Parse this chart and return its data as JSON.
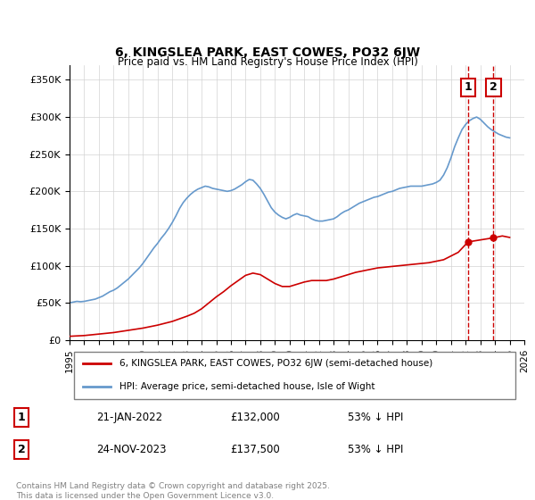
{
  "title_line1": "6, KINGSLEA PARK, EAST COWES, PO32 6JW",
  "title_line2": "Price paid vs. HM Land Registry's House Price Index (HPI)",
  "ylabel": "",
  "xlim": [
    1995,
    2026
  ],
  "ylim": [
    0,
    370000
  ],
  "yticks": [
    0,
    50000,
    100000,
    150000,
    200000,
    250000,
    300000,
    350000
  ],
  "ytick_labels": [
    "£0",
    "£50K",
    "£100K",
    "£150K",
    "£200K",
    "£250K",
    "£300K",
    "£350K"
  ],
  "xticks": [
    1995,
    1996,
    1997,
    1998,
    1999,
    2000,
    2001,
    2002,
    2003,
    2004,
    2005,
    2006,
    2007,
    2008,
    2009,
    2010,
    2011,
    2012,
    2013,
    2014,
    2015,
    2016,
    2017,
    2018,
    2019,
    2020,
    2021,
    2022,
    2023,
    2024,
    2025,
    2026
  ],
  "red_line_color": "#cc0000",
  "blue_line_color": "#6699cc",
  "marker_vline_color": "#cc0000",
  "annotation_box_color": "#cc0000",
  "legend_label_red": "6, KINGSLEA PARK, EAST COWES, PO32 6JW (semi-detached house)",
  "legend_label_blue": "HPI: Average price, semi-detached house, Isle of Wight",
  "annotation1_label": "1",
  "annotation1_date": "21-JAN-2022",
  "annotation1_price": "£132,000",
  "annotation1_hpi": "53% ↓ HPI",
  "annotation2_label": "2",
  "annotation2_date": "24-NOV-2023",
  "annotation2_price": "£137,500",
  "annotation2_hpi": "53% ↓ HPI",
  "footnote": "Contains HM Land Registry data © Crown copyright and database right 2025.\nThis data is licensed under the Open Government Licence v3.0.",
  "hpi_x": [
    1995.0,
    1995.25,
    1995.5,
    1995.75,
    1996.0,
    1996.25,
    1996.5,
    1996.75,
    1997.0,
    1997.25,
    1997.5,
    1997.75,
    1998.0,
    1998.25,
    1998.5,
    1998.75,
    1999.0,
    1999.25,
    1999.5,
    1999.75,
    2000.0,
    2000.25,
    2000.5,
    2000.75,
    2001.0,
    2001.25,
    2001.5,
    2001.75,
    2002.0,
    2002.25,
    2002.5,
    2002.75,
    2003.0,
    2003.25,
    2003.5,
    2003.75,
    2004.0,
    2004.25,
    2004.5,
    2004.75,
    2005.0,
    2005.25,
    2005.5,
    2005.75,
    2006.0,
    2006.25,
    2006.5,
    2006.75,
    2007.0,
    2007.25,
    2007.5,
    2007.75,
    2008.0,
    2008.25,
    2008.5,
    2008.75,
    2009.0,
    2009.25,
    2009.5,
    2009.75,
    2010.0,
    2010.25,
    2010.5,
    2010.75,
    2011.0,
    2011.25,
    2011.5,
    2011.75,
    2012.0,
    2012.25,
    2012.5,
    2012.75,
    2013.0,
    2013.25,
    2013.5,
    2013.75,
    2014.0,
    2014.25,
    2014.5,
    2014.75,
    2015.0,
    2015.25,
    2015.5,
    2015.75,
    2016.0,
    2016.25,
    2016.5,
    2016.75,
    2017.0,
    2017.25,
    2017.5,
    2017.75,
    2018.0,
    2018.25,
    2018.5,
    2018.75,
    2019.0,
    2019.25,
    2019.5,
    2019.75,
    2020.0,
    2020.25,
    2020.5,
    2020.75,
    2021.0,
    2021.25,
    2021.5,
    2021.75,
    2022.0,
    2022.25,
    2022.5,
    2022.75,
    2023.0,
    2023.25,
    2023.5,
    2023.75,
    2024.0,
    2024.25,
    2024.5,
    2024.75,
    2025.0
  ],
  "hpi_y": [
    50000,
    51000,
    52000,
    51500,
    52000,
    53000,
    54000,
    55000,
    57000,
    59000,
    62000,
    65000,
    67000,
    70000,
    74000,
    78000,
    82000,
    87000,
    92000,
    97000,
    103000,
    110000,
    117000,
    124000,
    130000,
    137000,
    143000,
    150000,
    158000,
    167000,
    177000,
    185000,
    191000,
    196000,
    200000,
    203000,
    205000,
    207000,
    206000,
    204000,
    203000,
    202000,
    201000,
    200000,
    201000,
    203000,
    206000,
    209000,
    213000,
    216000,
    215000,
    210000,
    204000,
    196000,
    187000,
    178000,
    172000,
    168000,
    165000,
    163000,
    165000,
    168000,
    170000,
    168000,
    167000,
    166000,
    163000,
    161000,
    160000,
    160000,
    161000,
    162000,
    163000,
    166000,
    170000,
    173000,
    175000,
    178000,
    181000,
    184000,
    186000,
    188000,
    190000,
    192000,
    193000,
    195000,
    197000,
    199000,
    200000,
    202000,
    204000,
    205000,
    206000,
    207000,
    207000,
    207000,
    207000,
    208000,
    209000,
    210000,
    212000,
    215000,
    222000,
    232000,
    245000,
    260000,
    272000,
    283000,
    290000,
    295000,
    298000,
    300000,
    297000,
    292000,
    287000,
    283000,
    280000,
    277000,
    275000,
    273000,
    272000
  ],
  "red_x": [
    1995.0,
    1995.5,
    1996.0,
    1997.0,
    1998.0,
    1999.0,
    2000.0,
    2001.0,
    2002.0,
    2003.0,
    2003.5,
    2004.0,
    2004.5,
    2005.0,
    2005.5,
    2006.0,
    2006.5,
    2007.0,
    2007.5,
    2008.0,
    2008.5,
    2009.0,
    2009.5,
    2010.0,
    2010.5,
    2011.0,
    2011.5,
    2012.0,
    2012.5,
    2013.0,
    2013.5,
    2014.0,
    2014.5,
    2015.0,
    2015.5,
    2016.0,
    2016.5,
    2017.0,
    2017.5,
    2018.0,
    2018.5,
    2019.0,
    2019.5,
    2020.0,
    2020.5,
    2021.0,
    2021.5,
    2022.166,
    2023.9,
    2024.5,
    2025.0
  ],
  "red_y": [
    5000,
    5500,
    6000,
    8000,
    10000,
    13000,
    16000,
    20000,
    25000,
    32000,
    36000,
    42000,
    50000,
    58000,
    65000,
    73000,
    80000,
    87000,
    90000,
    88000,
    82000,
    76000,
    72000,
    72000,
    75000,
    78000,
    80000,
    80000,
    80000,
    82000,
    85000,
    88000,
    91000,
    93000,
    95000,
    97000,
    98000,
    99000,
    100000,
    101000,
    102000,
    103000,
    104000,
    106000,
    108000,
    113000,
    118000,
    132000,
    137500,
    140000,
    138000
  ],
  "sale1_x": 2022.166,
  "sale1_y": 132000,
  "sale2_x": 2023.9,
  "sale2_y": 137500,
  "vline1_x": 2022.166,
  "vline2_x": 2023.9
}
